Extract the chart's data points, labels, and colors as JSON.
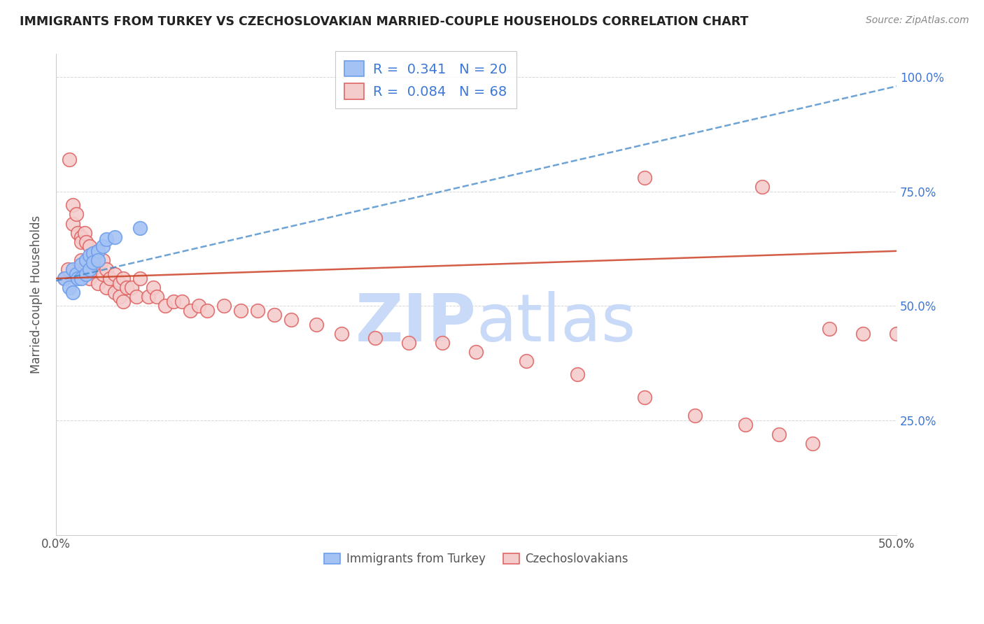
{
  "title": "IMMIGRANTS FROM TURKEY VS CZECHOSLOVAKIAN MARRIED-COUPLE HOUSEHOLDS CORRELATION CHART",
  "source_text": "Source: ZipAtlas.com",
  "ylabel": "Married-couple Households",
  "x_min": 0.0,
  "x_max": 0.5,
  "y_min": 0.0,
  "y_max": 1.05,
  "y_ticks": [
    0.0,
    0.25,
    0.5,
    0.75,
    1.0
  ],
  "y_tick_labels_right": [
    "",
    "25.0%",
    "50.0%",
    "75.0%",
    "100.0%"
  ],
  "x_tick_vals": [
    0.0,
    0.5
  ],
  "x_tick_labels": [
    "0.0%",
    "50.0%"
  ],
  "blue_fill": "#a4c2f4",
  "blue_edge": "#6d9eeb",
  "pink_fill": "#f4cccc",
  "pink_edge": "#e06666",
  "blue_line_color": "#3d85c8",
  "pink_line_color": "#cc4125",
  "right_axis_color": "#3c78d8",
  "watermark_color": "#c9daf8",
  "turkey_x": [
    0.005,
    0.008,
    0.01,
    0.01,
    0.012,
    0.013,
    0.015,
    0.015,
    0.018,
    0.018,
    0.02,
    0.02,
    0.022,
    0.022,
    0.025,
    0.025,
    0.028,
    0.03,
    0.035,
    0.05
  ],
  "turkey_y": [
    0.56,
    0.54,
    0.58,
    0.53,
    0.57,
    0.56,
    0.59,
    0.56,
    0.6,
    0.57,
    0.61,
    0.58,
    0.615,
    0.595,
    0.62,
    0.6,
    0.63,
    0.645,
    0.65,
    0.67
  ],
  "czech_x": [
    0.005,
    0.007,
    0.008,
    0.01,
    0.01,
    0.012,
    0.013,
    0.015,
    0.015,
    0.015,
    0.017,
    0.018,
    0.018,
    0.02,
    0.02,
    0.02,
    0.022,
    0.022,
    0.025,
    0.025,
    0.025,
    0.028,
    0.028,
    0.03,
    0.03,
    0.032,
    0.035,
    0.035,
    0.038,
    0.038,
    0.04,
    0.04,
    0.042,
    0.045,
    0.048,
    0.05,
    0.055,
    0.058,
    0.06,
    0.065,
    0.07,
    0.075,
    0.08,
    0.085,
    0.09,
    0.1,
    0.11,
    0.12,
    0.13,
    0.14,
    0.155,
    0.17,
    0.19,
    0.21,
    0.23,
    0.25,
    0.28,
    0.31,
    0.35,
    0.38,
    0.41,
    0.43,
    0.45,
    0.46,
    0.48,
    0.5,
    0.42,
    0.35
  ],
  "czech_y": [
    0.56,
    0.58,
    0.82,
    0.72,
    0.68,
    0.7,
    0.66,
    0.65,
    0.64,
    0.6,
    0.66,
    0.64,
    0.59,
    0.63,
    0.6,
    0.56,
    0.61,
    0.58,
    0.62,
    0.59,
    0.55,
    0.6,
    0.57,
    0.58,
    0.54,
    0.56,
    0.57,
    0.53,
    0.55,
    0.52,
    0.56,
    0.51,
    0.54,
    0.54,
    0.52,
    0.56,
    0.52,
    0.54,
    0.52,
    0.5,
    0.51,
    0.51,
    0.49,
    0.5,
    0.49,
    0.5,
    0.49,
    0.49,
    0.48,
    0.47,
    0.46,
    0.44,
    0.43,
    0.42,
    0.42,
    0.4,
    0.38,
    0.35,
    0.3,
    0.26,
    0.24,
    0.22,
    0.2,
    0.45,
    0.44,
    0.44,
    0.76,
    0.78
  ],
  "blue_trend_x": [
    0.0,
    0.5
  ],
  "blue_trend_y": [
    0.555,
    0.98
  ],
  "pink_trend_x": [
    0.0,
    0.5
  ],
  "pink_trend_y": [
    0.56,
    0.62
  ]
}
